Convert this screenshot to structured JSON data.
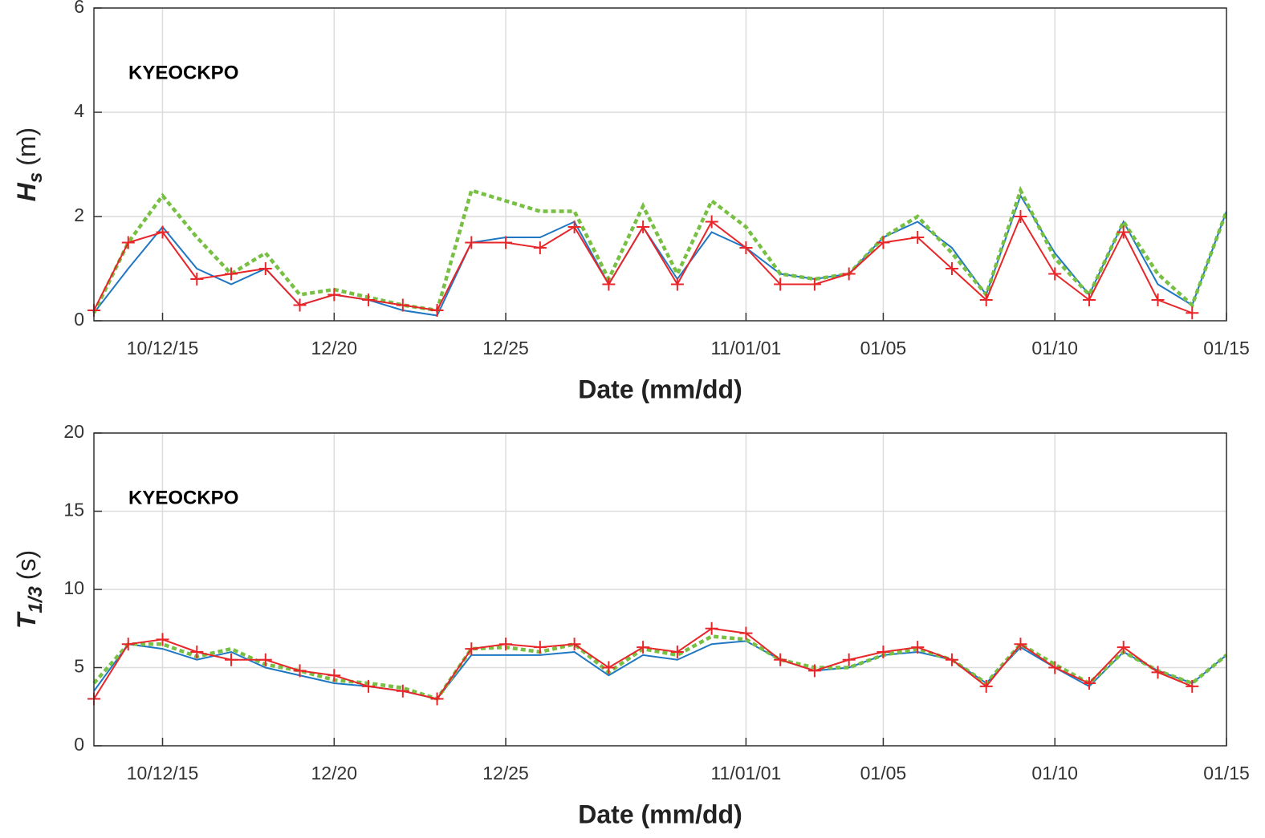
{
  "chart_data": [
    {
      "type": "line",
      "annotation": "KYEOCKPO",
      "xlabel": "Date (mm/dd)",
      "ylabel": {
        "main": "H",
        "sub": "s",
        "unit": "(m)"
      },
      "xlim": [
        "2010-12-13",
        "2011-01-15"
      ],
      "ylim": [
        0,
        6
      ],
      "yticks": [
        0,
        2,
        4,
        6
      ],
      "grid": true,
      "xticks": [
        {
          "value": "2010-12-15",
          "label": "10/12/15"
        },
        {
          "value": "2010-12-20",
          "label": "12/20"
        },
        {
          "value": "2010-12-25",
          "label": "12/25"
        },
        {
          "value": "2011-01-01",
          "label": "11/01/01"
        },
        {
          "value": "2011-01-05",
          "label": "01/05"
        },
        {
          "value": "2011-01-10",
          "label": "01/10"
        },
        {
          "value": "2011-01-15",
          "label": "01/15"
        }
      ],
      "x": [
        "2010-12-13",
        "2010-12-14",
        "2010-12-15",
        "2010-12-16",
        "2010-12-17",
        "2010-12-18",
        "2010-12-19",
        "2010-12-20",
        "2010-12-21",
        "2010-12-22",
        "2010-12-23",
        "2010-12-24",
        "2010-12-25",
        "2010-12-26",
        "2010-12-27",
        "2010-12-28",
        "2010-12-29",
        "2010-12-30",
        "2010-12-31",
        "2011-01-01",
        "2011-01-02",
        "2011-01-03",
        "2011-01-04",
        "2011-01-05",
        "2011-01-06",
        "2011-01-07",
        "2011-01-08",
        "2011-01-09",
        "2011-01-10",
        "2011-01-11",
        "2011-01-12",
        "2011-01-13",
        "2011-01-14",
        "2011-01-15"
      ],
      "series": [
        {
          "color": "#1f77c4",
          "style": "solid",
          "values": [
            0.15,
            1.0,
            1.8,
            1.0,
            0.7,
            1.0,
            0.3,
            0.5,
            0.4,
            0.2,
            0.1,
            1.5,
            1.6,
            1.6,
            1.9,
            0.7,
            1.8,
            0.8,
            1.7,
            1.4,
            0.9,
            0.8,
            0.9,
            1.6,
            1.9,
            1.4,
            0.5,
            2.4,
            1.3,
            0.5,
            1.9,
            0.7,
            0.3,
            2.1
          ]
        },
        {
          "color": "#77c043",
          "style": "dashed",
          "values": [
            0.15,
            1.5,
            2.4,
            1.6,
            0.9,
            1.3,
            0.5,
            0.6,
            0.45,
            0.3,
            0.2,
            2.5,
            2.3,
            2.1,
            2.1,
            0.8,
            2.2,
            0.9,
            2.3,
            1.8,
            0.9,
            0.8,
            0.9,
            1.6,
            2.0,
            1.3,
            0.5,
            2.5,
            1.2,
            0.5,
            1.9,
            0.9,
            0.3,
            2.1
          ]
        },
        {
          "color": "#e8262a",
          "style": "solid",
          "marker": "+",
          "values": [
            0.2,
            1.5,
            1.7,
            0.8,
            0.9,
            1.0,
            0.3,
            0.5,
            0.4,
            0.3,
            0.2,
            1.5,
            1.5,
            1.4,
            1.8,
            0.7,
            1.8,
            0.7,
            1.9,
            1.4,
            0.7,
            0.7,
            0.9,
            1.5,
            1.6,
            1.0,
            0.4,
            2.0,
            0.9,
            0.4,
            1.7,
            0.4,
            0.15,
            null
          ]
        }
      ]
    },
    {
      "type": "line",
      "annotation": "KYEOCKPO",
      "xlabel": "Date (mm/dd)",
      "ylabel": {
        "main": "T",
        "sub": "1/3",
        "unit": "(s)"
      },
      "xlim": [
        "2010-12-13",
        "2011-01-15"
      ],
      "ylim": [
        0,
        20
      ],
      "yticks": [
        0,
        5,
        10,
        15,
        20
      ],
      "grid": true,
      "xticks": [
        {
          "value": "2010-12-15",
          "label": "10/12/15"
        },
        {
          "value": "2010-12-20",
          "label": "12/20"
        },
        {
          "value": "2010-12-25",
          "label": "12/25"
        },
        {
          "value": "2011-01-01",
          "label": "11/01/01"
        },
        {
          "value": "2011-01-05",
          "label": "01/05"
        },
        {
          "value": "2011-01-10",
          "label": "01/10"
        },
        {
          "value": "2011-01-15",
          "label": "01/15"
        }
      ],
      "x": [
        "2010-12-13",
        "2010-12-14",
        "2010-12-15",
        "2010-12-16",
        "2010-12-17",
        "2010-12-18",
        "2010-12-19",
        "2010-12-20",
        "2010-12-21",
        "2010-12-22",
        "2010-12-23",
        "2010-12-24",
        "2010-12-25",
        "2010-12-26",
        "2010-12-27",
        "2010-12-28",
        "2010-12-29",
        "2010-12-30",
        "2010-12-31",
        "2011-01-01",
        "2011-01-02",
        "2011-01-03",
        "2011-01-04",
        "2011-01-05",
        "2011-01-06",
        "2011-01-07",
        "2011-01-08",
        "2011-01-09",
        "2011-01-10",
        "2011-01-11",
        "2011-01-12",
        "2011-01-13",
        "2011-01-14",
        "2011-01-15"
      ],
      "series": [
        {
          "color": "#1f77c4",
          "style": "solid",
          "values": [
            3.5,
            6.5,
            6.2,
            5.5,
            6.0,
            5.0,
            4.5,
            4.0,
            3.8,
            3.5,
            3.0,
            5.8,
            5.8,
            5.8,
            6.0,
            4.5,
            5.8,
            5.5,
            6.5,
            6.7,
            5.5,
            4.8,
            5.0,
            5.8,
            6.0,
            5.5,
            4.0,
            6.3,
            5.0,
            3.8,
            6.0,
            4.8,
            4.0,
            5.8
          ]
        },
        {
          "color": "#77c043",
          "style": "dashed",
          "values": [
            4.0,
            6.5,
            6.5,
            5.7,
            6.2,
            5.2,
            4.8,
            4.2,
            4.0,
            3.7,
            3.0,
            6.2,
            6.3,
            6.0,
            6.5,
            4.7,
            6.2,
            5.8,
            7.0,
            6.8,
            5.5,
            5.0,
            5.0,
            5.8,
            6.2,
            5.5,
            4.0,
            6.5,
            5.2,
            4.0,
            6.0,
            4.8,
            4.0,
            5.8
          ]
        },
        {
          "color": "#e8262a",
          "style": "solid",
          "marker": "+",
          "values": [
            3.0,
            6.5,
            6.8,
            6.0,
            5.5,
            5.5,
            4.8,
            4.5,
            3.8,
            3.5,
            3.0,
            6.2,
            6.5,
            6.3,
            6.5,
            5.0,
            6.3,
            6.0,
            7.5,
            7.2,
            5.5,
            4.8,
            5.5,
            6.0,
            6.3,
            5.5,
            3.8,
            6.5,
            5.0,
            4.0,
            6.3,
            4.7,
            3.8,
            null
          ]
        }
      ]
    }
  ]
}
